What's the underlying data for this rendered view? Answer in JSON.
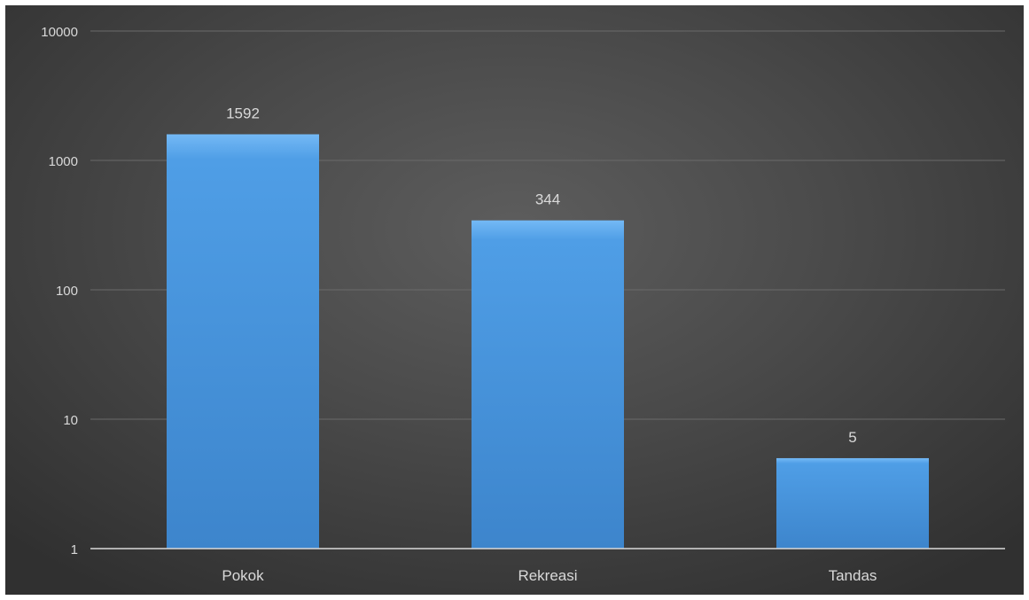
{
  "chart_data": {
    "type": "bar",
    "categories": [
      "Pokok",
      "Rekreasi",
      "Tandas"
    ],
    "values": [
      1592,
      344,
      5
    ],
    "data_labels": [
      "1592",
      "344",
      "5"
    ],
    "y_ticks": [
      1,
      10,
      100,
      1000,
      10000
    ],
    "y_tick_labels": [
      "1",
      "10",
      "100",
      "1000",
      "10000"
    ],
    "y_scale": "log",
    "ylim": [
      1,
      10000
    ],
    "title": "",
    "xlabel": "",
    "ylabel": "",
    "grid": true,
    "legend": "none",
    "colors": {
      "bar": "#4f9ee6",
      "bar_top": "#74b9f5",
      "bar_bottom": "#3d85cc",
      "axis": "#d9d9d9",
      "grid": "#6a6a6a",
      "text": "#d9d9d9",
      "background_center": "#5d5d5d",
      "background_edge": "#303030"
    }
  }
}
